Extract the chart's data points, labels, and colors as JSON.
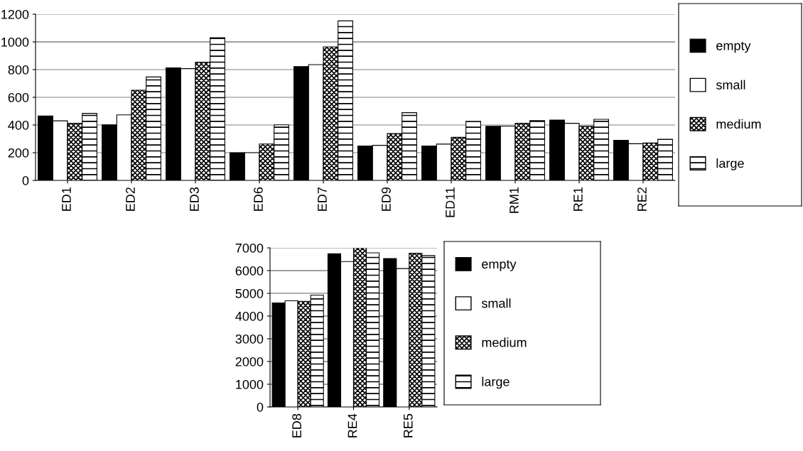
{
  "chart_data": [
    {
      "type": "bar",
      "categories": [
        "ED1",
        "ED2",
        "ED3",
        "ED6",
        "ED7",
        "ED9",
        "ED11",
        "RM1",
        "RE1",
        "RE2"
      ],
      "series": [
        {
          "name": "empty",
          "color": "#000000",
          "values": [
            465,
            401,
            812,
            200,
            822,
            248,
            248,
            391,
            436,
            290
          ]
        },
        {
          "name": "small",
          "color": "#ffffff",
          "values": [
            430,
            473,
            807,
            200,
            836,
            253,
            262,
            391,
            412,
            265
          ]
        },
        {
          "name": "medium",
          "color": "#000000",
          "values": [
            412,
            651,
            854,
            263,
            964,
            338,
            311,
            412,
            391,
            270
          ]
        },
        {
          "name": "large",
          "color": "#000000",
          "values": [
            484,
            747,
            1031,
            401,
            1152,
            489,
            426,
            432,
            441,
            297
          ]
        }
      ],
      "ylim": [
        0,
        1200
      ],
      "yticks": [
        0,
        200,
        400,
        600,
        800,
        1000,
        1200
      ],
      "grid": "y",
      "legend": "right"
    },
    {
      "type": "bar",
      "categories": [
        "ED8",
        "RE4",
        "RE5"
      ],
      "series": [
        {
          "name": "empty",
          "color": "#000000",
          "values": [
            4580,
            6740,
            6530
          ]
        },
        {
          "name": "small",
          "color": "#ffffff",
          "values": [
            4670,
            6400,
            6090
          ]
        },
        {
          "name": "medium",
          "color": "#000000",
          "values": [
            4650,
            7000,
            6760
          ]
        },
        {
          "name": "large",
          "color": "#000000",
          "values": [
            4920,
            6780,
            6660
          ]
        }
      ],
      "ylim": [
        0,
        7000
      ],
      "yticks": [
        0,
        1000,
        2000,
        3000,
        4000,
        5000,
        6000,
        7000
      ],
      "grid": "y",
      "legend": "right"
    }
  ]
}
